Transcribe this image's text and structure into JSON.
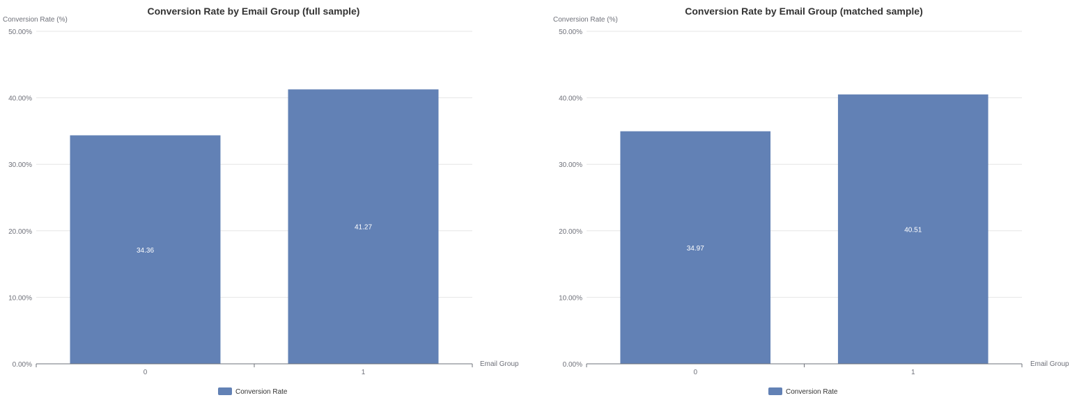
{
  "colors": {
    "bar": "#6281b5",
    "grid": "#e6e6e6",
    "axis": "#6e7079",
    "title": "#333333",
    "tick_label": "#6e7079",
    "value_label": "#ffffff"
  },
  "chart_data": [
    {
      "type": "bar",
      "title": "Conversion Rate by Email Group (full sample)",
      "xlabel": "Email Group",
      "ylabel": "Conversion Rate (%)",
      "categories": [
        "0",
        "1"
      ],
      "series": [
        {
          "name": "Conversion Rate",
          "values": [
            34.36,
            41.27
          ],
          "labels": [
            "34.36",
            "41.27"
          ]
        }
      ],
      "ylim": [
        0,
        50
      ],
      "yticks": [
        "0.00%",
        "10.00%",
        "20.00%",
        "30.00%",
        "40.00%",
        "50.00%"
      ],
      "grid": true,
      "legend": "bottom-center"
    },
    {
      "type": "bar",
      "title": "Conversion Rate by Email Group (matched sample)",
      "xlabel": "Email Group",
      "ylabel": "Conversion Rate (%)",
      "categories": [
        "0",
        "1"
      ],
      "series": [
        {
          "name": "Conversion Rate",
          "values": [
            34.97,
            40.51
          ],
          "labels": [
            "34.97",
            "40.51"
          ]
        }
      ],
      "ylim": [
        0,
        50
      ],
      "yticks": [
        "0.00%",
        "10.00%",
        "20.00%",
        "30.00%",
        "40.00%",
        "50.00%"
      ],
      "grid": true,
      "legend": "bottom-center"
    }
  ]
}
